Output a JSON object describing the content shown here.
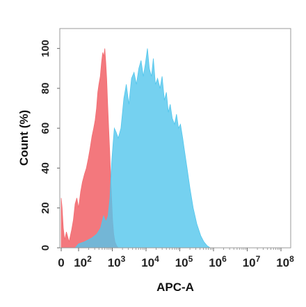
{
  "chart_data": {
    "type": "area",
    "title": "",
    "xlabel": "APC-A",
    "ylabel": "Count  (%)",
    "x_scale": "biexponential",
    "xlim": [
      0,
      100000000
    ],
    "ylim": [
      0,
      110
    ],
    "grid": false,
    "x_ticks": [
      {
        "value": 0,
        "base": "0",
        "exp": ""
      },
      {
        "value": 100,
        "base": "10",
        "exp": "2"
      },
      {
        "value": 1000,
        "base": "10",
        "exp": "3"
      },
      {
        "value": 10000,
        "base": "10",
        "exp": "4"
      },
      {
        "value": 100000,
        "base": "10",
        "exp": "5"
      },
      {
        "value": 1000000,
        "base": "10",
        "exp": "6"
      },
      {
        "value": 10000000,
        "base": "10",
        "exp": "7"
      },
      {
        "value": 100000000,
        "base": "10",
        "exp": "8"
      }
    ],
    "y_ticks": [
      0,
      20,
      40,
      60,
      80,
      100
    ],
    "series": [
      {
        "color": "#f26d72",
        "points": [
          [
            0,
            0
          ],
          [
            0,
            25
          ],
          [
            5,
            20
          ],
          [
            12,
            10
          ],
          [
            20,
            4
          ],
          [
            30,
            8
          ],
          [
            45,
            3
          ],
          [
            60,
            9
          ],
          [
            70,
            14
          ],
          [
            80,
            22
          ],
          [
            90,
            25
          ],
          [
            100,
            20
          ],
          [
            115,
            28
          ],
          [
            130,
            33
          ],
          [
            150,
            37
          ],
          [
            170,
            40
          ],
          [
            195,
            45
          ],
          [
            220,
            50
          ],
          [
            250,
            56
          ],
          [
            280,
            60
          ],
          [
            310,
            64
          ],
          [
            340,
            70
          ],
          [
            370,
            78
          ],
          [
            400,
            82
          ],
          [
            440,
            86
          ],
          [
            480,
            93
          ],
          [
            520,
            98
          ],
          [
            560,
            96
          ],
          [
            600,
            100
          ],
          [
            640,
            93
          ],
          [
            680,
            85
          ],
          [
            720,
            74
          ],
          [
            780,
            60
          ],
          [
            840,
            48
          ],
          [
            900,
            34
          ],
          [
            960,
            24
          ],
          [
            1020,
            14
          ],
          [
            1100,
            7
          ],
          [
            1200,
            3
          ],
          [
            1350,
            1
          ],
          [
            1500,
            0
          ]
        ]
      },
      {
        "color": "#52c6ec",
        "points": [
          [
            80,
            0
          ],
          [
            100,
            2
          ],
          [
            150,
            3
          ],
          [
            250,
            5
          ],
          [
            350,
            7
          ],
          [
            450,
            10
          ],
          [
            550,
            16
          ],
          [
            650,
            13
          ],
          [
            750,
            16
          ],
          [
            850,
            25
          ],
          [
            950,
            42
          ],
          [
            1050,
            52
          ],
          [
            1150,
            60
          ],
          [
            1300,
            58
          ],
          [
            1500,
            55
          ],
          [
            1800,
            60
          ],
          [
            2200,
            75
          ],
          [
            2600,
            82
          ],
          [
            3100,
            72
          ],
          [
            3700,
            85
          ],
          [
            4400,
            88
          ],
          [
            5200,
            82
          ],
          [
            6100,
            90
          ],
          [
            7100,
            94
          ],
          [
            8300,
            86
          ],
          [
            9500,
            92
          ],
          [
            11000,
            100
          ],
          [
            12500,
            90
          ],
          [
            14500,
            86
          ],
          [
            16500,
            95
          ],
          [
            19000,
            82
          ],
          [
            22000,
            85
          ],
          [
            26000,
            80
          ],
          [
            30000,
            86
          ],
          [
            35000,
            74
          ],
          [
            40000,
            78
          ],
          [
            46000,
            68
          ],
          [
            52000,
            72
          ],
          [
            60000,
            65
          ],
          [
            70000,
            62
          ],
          [
            80000,
            67
          ],
          [
            92000,
            60
          ],
          [
            105000,
            62
          ],
          [
            122000,
            55
          ],
          [
            140000,
            48
          ],
          [
            165000,
            40
          ],
          [
            200000,
            30
          ],
          [
            250000,
            20
          ],
          [
            320000,
            12
          ],
          [
            420000,
            6
          ],
          [
            520000,
            3
          ],
          [
            650000,
            1
          ],
          [
            800000,
            0
          ]
        ]
      }
    ]
  }
}
